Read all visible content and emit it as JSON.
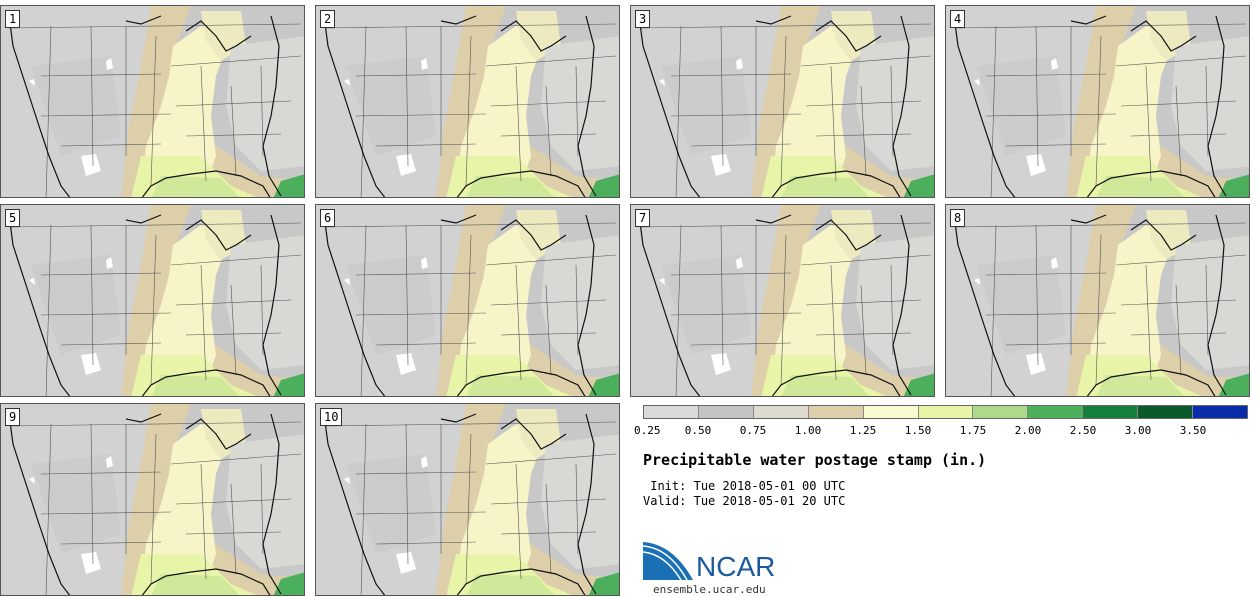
{
  "title": "Precipitable water postage stamp (in.)",
  "init_label": " Init:",
  "init_value": "Tue 2018-05-01 00 UTC",
  "valid_label": "Valid:",
  "valid_value": "Tue 2018-05-01 20 UTC",
  "stamps": [
    "1",
    "2",
    "3",
    "4",
    "5",
    "6",
    "7",
    "8",
    "9",
    "10"
  ],
  "colorbar": {
    "ticks": [
      "0.25",
      "0.50",
      "0.75",
      "1.00",
      "1.25",
      "1.50",
      "1.75",
      "2.00",
      "2.50",
      "3.00",
      "3.50"
    ],
    "colors": [
      "#d9d9d9",
      "#c4c4c4",
      "#dedad0",
      "#ddcfaa",
      "#fbfbd0",
      "#e8f4a8",
      "#acd98a",
      "#4caf5c",
      "#15803c",
      "#0b5a2c",
      "#0a2ca8"
    ]
  },
  "logo": {
    "name": "NCAR",
    "site": "ensemble.ucar.edu"
  }
}
